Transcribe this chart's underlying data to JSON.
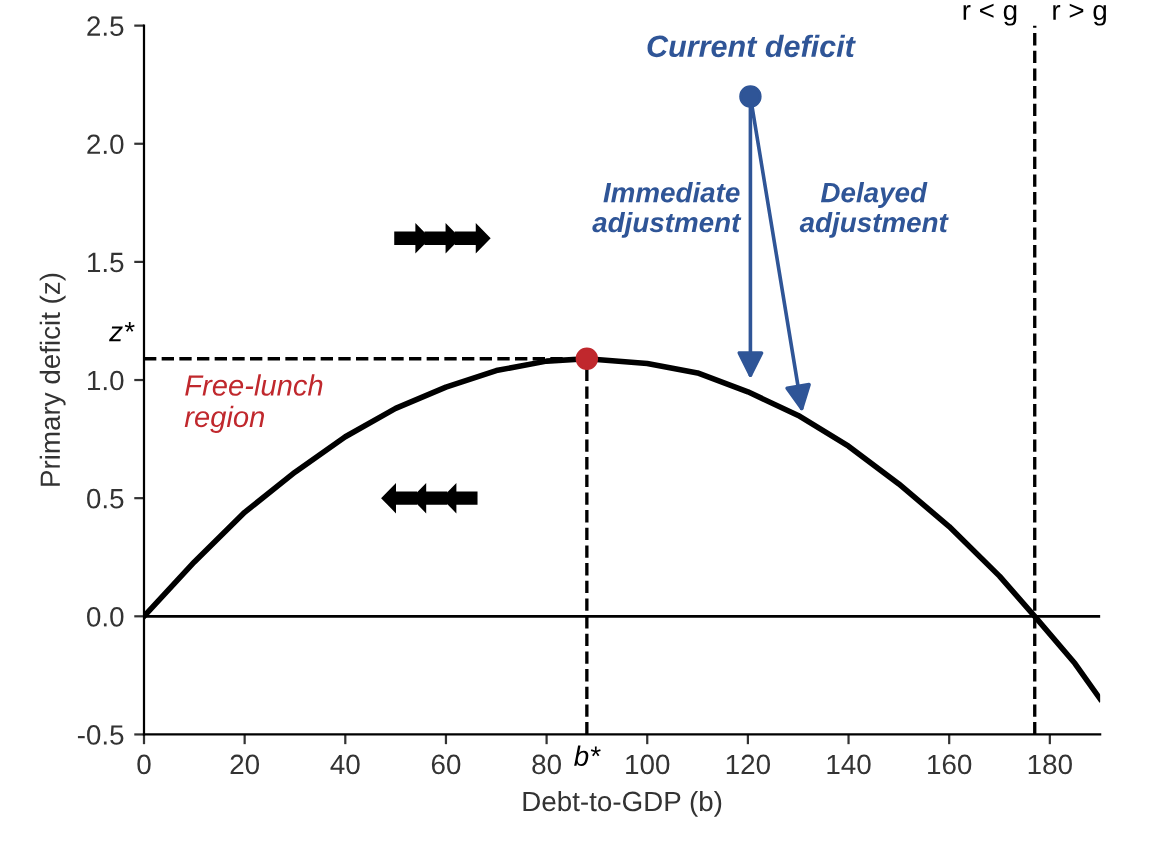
{
  "chart_data": {
    "type": "line",
    "xlabel": "Debt-to-GDP (b)",
    "ylabel": "Primary deficit (z)",
    "xlim": [
      0,
      190
    ],
    "ylim": [
      -0.5,
      2.5
    ],
    "xticks": [
      0,
      20,
      40,
      60,
      80,
      100,
      120,
      140,
      160,
      180
    ],
    "yticks": [
      {
        "value": -0.5,
        "label": "-0.5"
      },
      {
        "value": 0,
        "label": "0.0"
      },
      {
        "value": 0.5,
        "label": "0.5"
      },
      {
        "value": 1,
        "label": "1.0"
      },
      {
        "value": 1.5,
        "label": "1.5"
      },
      {
        "value": 2,
        "label": "2.0"
      },
      {
        "value": 2.5,
        "label": "2.5"
      }
    ],
    "grid": false,
    "series": [
      {
        "color": "#000000",
        "marker": "none",
        "line_style": "solid",
        "x": [
          0,
          10,
          20,
          30,
          40,
          50,
          60,
          70,
          80,
          88,
          100,
          110,
          120,
          130,
          140,
          150,
          160,
          170,
          177,
          185,
          190
        ],
        "values": [
          0,
          0.23,
          0.44,
          0.61,
          0.76,
          0.88,
          0.97,
          1.04,
          1.08,
          1.09,
          1.07,
          1.03,
          0.95,
          0.85,
          0.72,
          0.56,
          0.38,
          0.17,
          0,
          -0.2,
          -0.35
        ]
      },
      {
        "type": "scatter",
        "color": "#c0282d",
        "marker": "circle",
        "x": [
          88
        ],
        "values": [
          1.09
        ]
      },
      {
        "type": "scatter",
        "color": "#2f5597",
        "marker": "circle",
        "x": [
          120.5
        ],
        "values": [
          2.2
        ]
      }
    ],
    "ref_lines": [
      {
        "axis": "y",
        "value": 0,
        "color": "#000000",
        "line_style": "solid"
      },
      {
        "axis": "y",
        "value": 1.09,
        "label": "z*",
        "color": "#000000",
        "line_style": "dashed"
      },
      {
        "axis": "x",
        "value": 88,
        "label": "b*",
        "color": "#000000",
        "line_style": "dashed"
      },
      {
        "axis": "x",
        "value": 177,
        "color": "#000000",
        "line_style": "dashed"
      }
    ],
    "annotations": [
      {
        "text": "Current deficit",
        "x": 120.5,
        "y": 2.2
      },
      "Immediate adjustment",
      "Delayed adjustment",
      "Free-lunch region",
      "r < g",
      "r > g"
    ]
  }
}
